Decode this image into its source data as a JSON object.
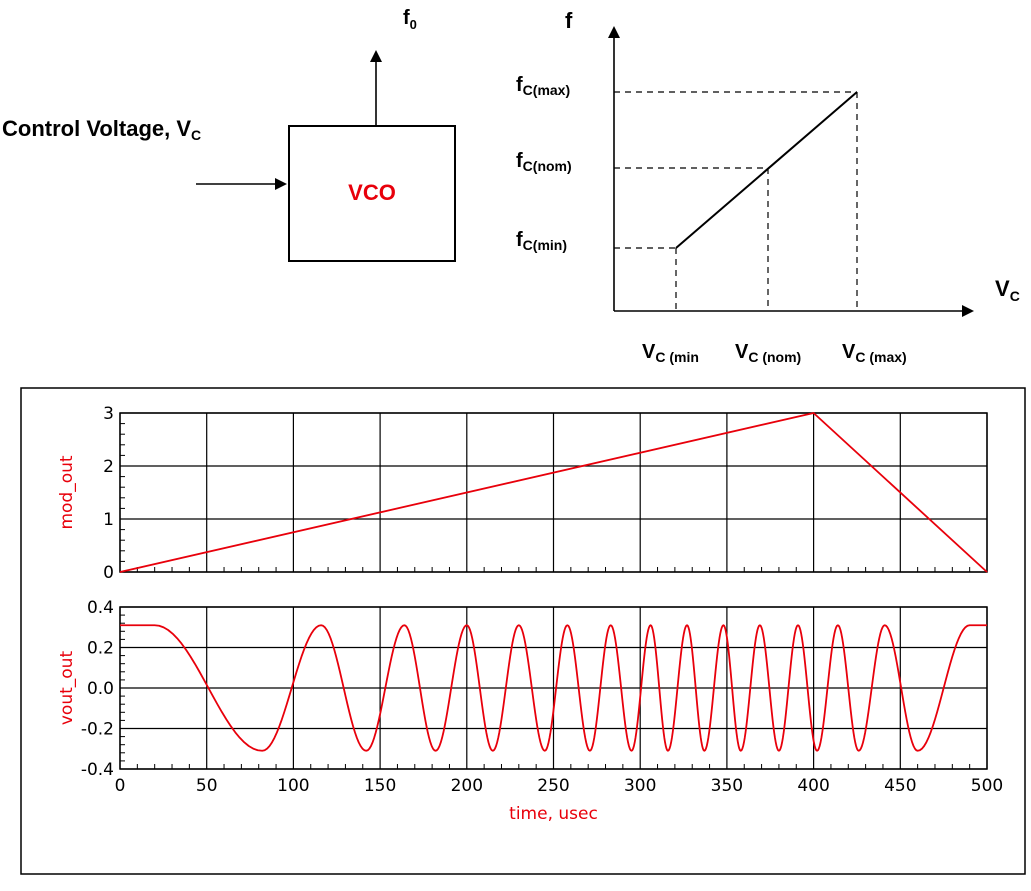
{
  "block_diagram": {
    "input_label": "Control Voltage, V",
    "input_sub": "C",
    "block_label": "VCO",
    "output_label": "f",
    "output_sub": "0",
    "block_color": "#e8000b"
  },
  "transfer_graph": {
    "y_axis_label": "f",
    "x_axis_label": "V",
    "x_axis_sub": "C",
    "y_levels": [
      {
        "main": "f",
        "sub": "C(max)"
      },
      {
        "main": "f",
        "sub": "C(nom)"
      },
      {
        "main": "f",
        "sub": "C(min)"
      }
    ],
    "x_levels": [
      {
        "main": "V",
        "sub": "C (min"
      },
      {
        "main": "V",
        "sub": "C (nom)"
      },
      {
        "main": "V",
        "sub": "C (max)"
      }
    ]
  },
  "chart_data": [
    {
      "type": "line",
      "series": [
        {
          "name": "mod_out",
          "color": "#e8000b",
          "x": [
            0,
            400,
            500
          ],
          "y": [
            0,
            3,
            0
          ]
        }
      ],
      "ylabel": "mod_out",
      "xlim": [
        0,
        500
      ],
      "ylim": [
        0,
        3
      ],
      "x_ticks": [
        0,
        50,
        100,
        150,
        200,
        250,
        300,
        350,
        400,
        450,
        500
      ],
      "y_ticks": [
        0,
        1,
        2,
        3
      ],
      "y_tick_labels": [
        "0",
        "1",
        "2",
        "3"
      ],
      "grid": true
    },
    {
      "type": "line",
      "series": [
        {
          "name": "vout_out",
          "color": "#e8000b",
          "x": [
            0,
            20,
            82,
            116,
            142,
            164,
            182,
            200,
            215,
            230,
            245,
            258,
            271,
            283,
            295,
            306,
            316,
            327,
            337,
            348,
            358,
            369,
            380,
            391,
            402,
            414,
            426,
            441,
            460,
            490,
            500
          ],
          "y": [
            0.31,
            0.31,
            -0.31,
            0.31,
            -0.31,
            0.31,
            -0.31,
            0.31,
            -0.31,
            0.31,
            -0.31,
            0.31,
            -0.31,
            0.31,
            -0.31,
            0.31,
            -0.31,
            0.31,
            -0.31,
            0.31,
            -0.31,
            0.31,
            -0.31,
            0.31,
            -0.31,
            0.31,
            -0.31,
            0.31,
            -0.31,
            0.31,
            0.31
          ]
        }
      ],
      "xlabel": "time, usec",
      "ylabel": "vout_out",
      "xlim": [
        0,
        500
      ],
      "ylim": [
        -0.4,
        0.4
      ],
      "x_ticks": [
        0,
        50,
        100,
        150,
        200,
        250,
        300,
        350,
        400,
        450,
        500
      ],
      "x_tick_labels": [
        "0",
        "50",
        "100",
        "150",
        "200",
        "250",
        "300",
        "350",
        "400",
        "450",
        "500"
      ],
      "y_ticks": [
        -0.4,
        -0.2,
        0.0,
        0.2,
        0.4
      ],
      "y_tick_labels": [
        "-0.4",
        "-0.2",
        "0.0",
        "0.2",
        "0.4"
      ],
      "grid": true
    }
  ]
}
